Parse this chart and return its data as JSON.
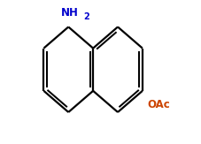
{
  "bg_color": "#ffffff",
  "bond_color": "#000000",
  "bond_width": 1.6,
  "nh2_color": "#0000cc",
  "oac_color": "#cc4400",
  "figsize": [
    2.27,
    1.63
  ],
  "dpi": 100,
  "xlim": [
    -3.2,
    3.8
  ],
  "ylim": [
    -3.0,
    2.8
  ]
}
